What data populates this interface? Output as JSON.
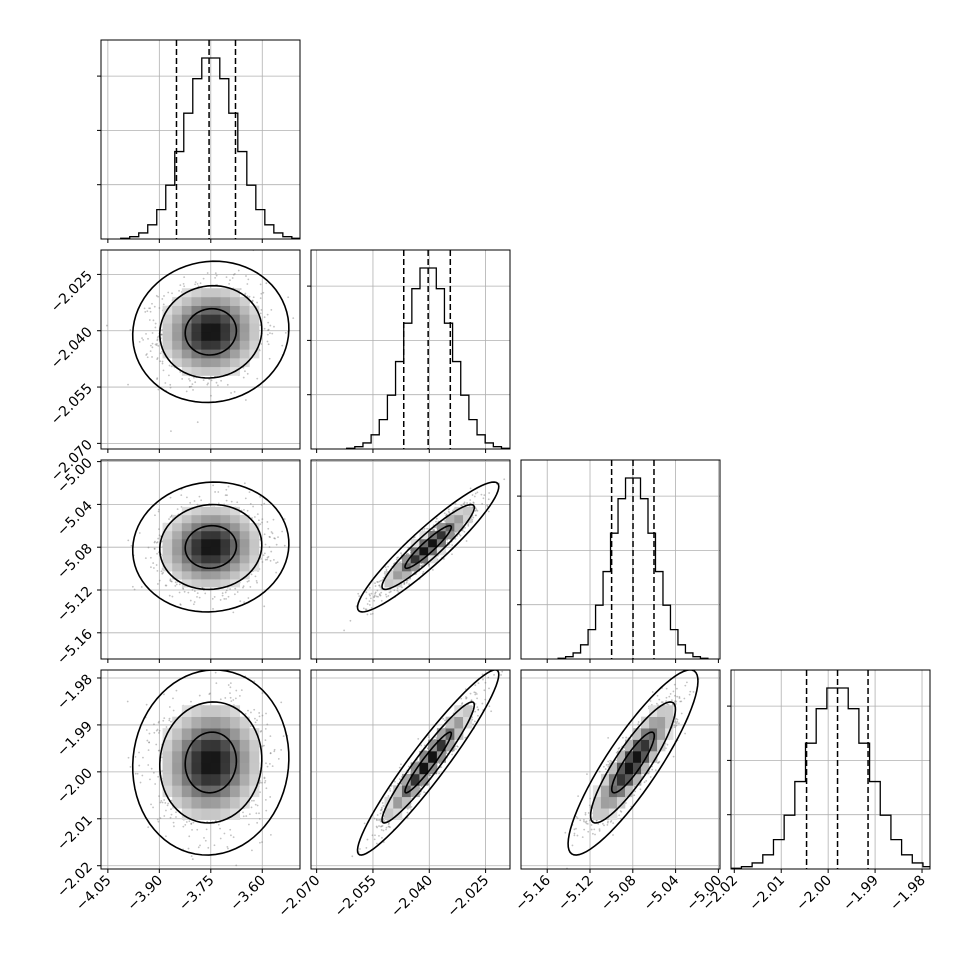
{
  "chart_data": {
    "type": "corner",
    "parameters": [
      {
        "xlim": [
          -4.07,
          -3.49
        ],
        "ticks": [
          -4.05,
          -3.9,
          -3.75,
          -3.6
        ],
        "tick_labels": [
          "−4.05",
          "−3.90",
          "−3.75",
          "−3.60"
        ],
        "quantiles": [
          -3.85,
          -3.755,
          -3.678
        ],
        "mean": -3.75,
        "sd": 0.075
      },
      {
        "xlim": [
          -2.0715,
          -2.0185
        ],
        "ticks": [
          -2.07,
          -2.055,
          -2.04,
          -2.025
        ],
        "tick_labels": [
          "−2.070",
          "−2.055",
          "−2.040",
          "−2.025"
        ],
        "quantiles": [
          -2.0468,
          -2.0403,
          -2.0344
        ],
        "mean": -2.0403,
        "sd": 0.0062
      },
      {
        "xlim": [
          -5.1845,
          -4.9985
        ],
        "ticks": [
          -5.16,
          -5.12,
          -5.08,
          -5.04,
          -5.0
        ],
        "tick_labels": [
          "−5.16",
          "−5.12",
          "−5.08",
          "−5.04",
          "−5.00"
        ],
        "quantiles": [
          -5.0998,
          -5.0798,
          -5.0602
        ],
        "mean": -5.0798,
        "sd": 0.02
      },
      {
        "xlim": [
          -2.0207,
          -1.9783
        ],
        "ticks": [
          -2.02,
          -2.01,
          -2.0,
          -1.99,
          -1.98
        ],
        "tick_labels": [
          "−2.02",
          "−2.01",
          "−2.00",
          "−1.99",
          "−1.98"
        ],
        "quantiles": [
          -2.0046,
          -1.998,
          -1.9915
        ],
        "mean": -1.998,
        "sd": 0.0065
      }
    ],
    "correlations": {
      "1-0": 0.05,
      "2-0": 0.05,
      "2-1": 0.93,
      "3-0": 0.05,
      "3-1": 0.95,
      "3-2": 0.88
    },
    "histogram_bins": 20,
    "contour_levels": [
      0.39,
      0.86,
      0.99
    ],
    "grid": true,
    "quantile_line_style": "dashed"
  }
}
